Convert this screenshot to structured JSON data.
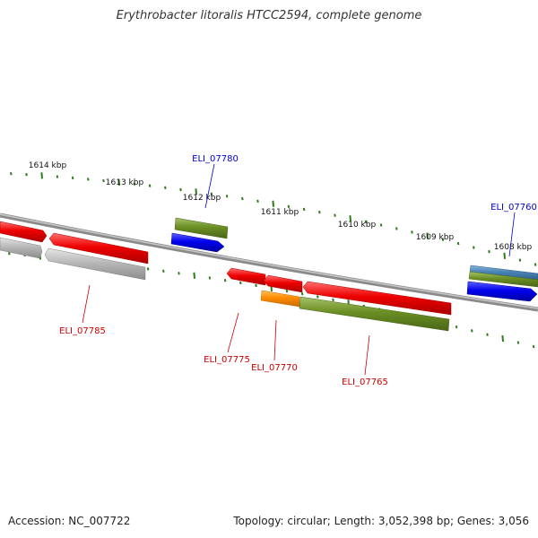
{
  "title": "Erythrobacter litoralis HTCC2594, complete genome",
  "footer": {
    "accession": "Accession: NC_007722",
    "summary": "Topology: circular; Length: 3,052,398 bp; Genes: 3,056"
  },
  "scale_labels": [
    "1614 kbp",
    "1613 kbp",
    "1612 kbp",
    "1611 kbp",
    "1610 kbp",
    "1609 kbp",
    "1608 kbp"
  ],
  "gene_labels": [
    "ELI_07780",
    "ELI_07760",
    "ELI_07785",
    "ELI_07775",
    "ELI_07770",
    "ELI_07765"
  ],
  "colors": {
    "forward_label": "#0000cc",
    "reverse_label": "#cc0000",
    "backbone": "#888888",
    "ticks": "#2e7d1a",
    "red_gene": "#ee0000",
    "blue_gene": "#0000ee",
    "olive_gene": "#6b8e23",
    "gray_gene": "#b0b0b0",
    "orange_gene": "#ff8c00",
    "steel_gene": "#4682b4"
  }
}
